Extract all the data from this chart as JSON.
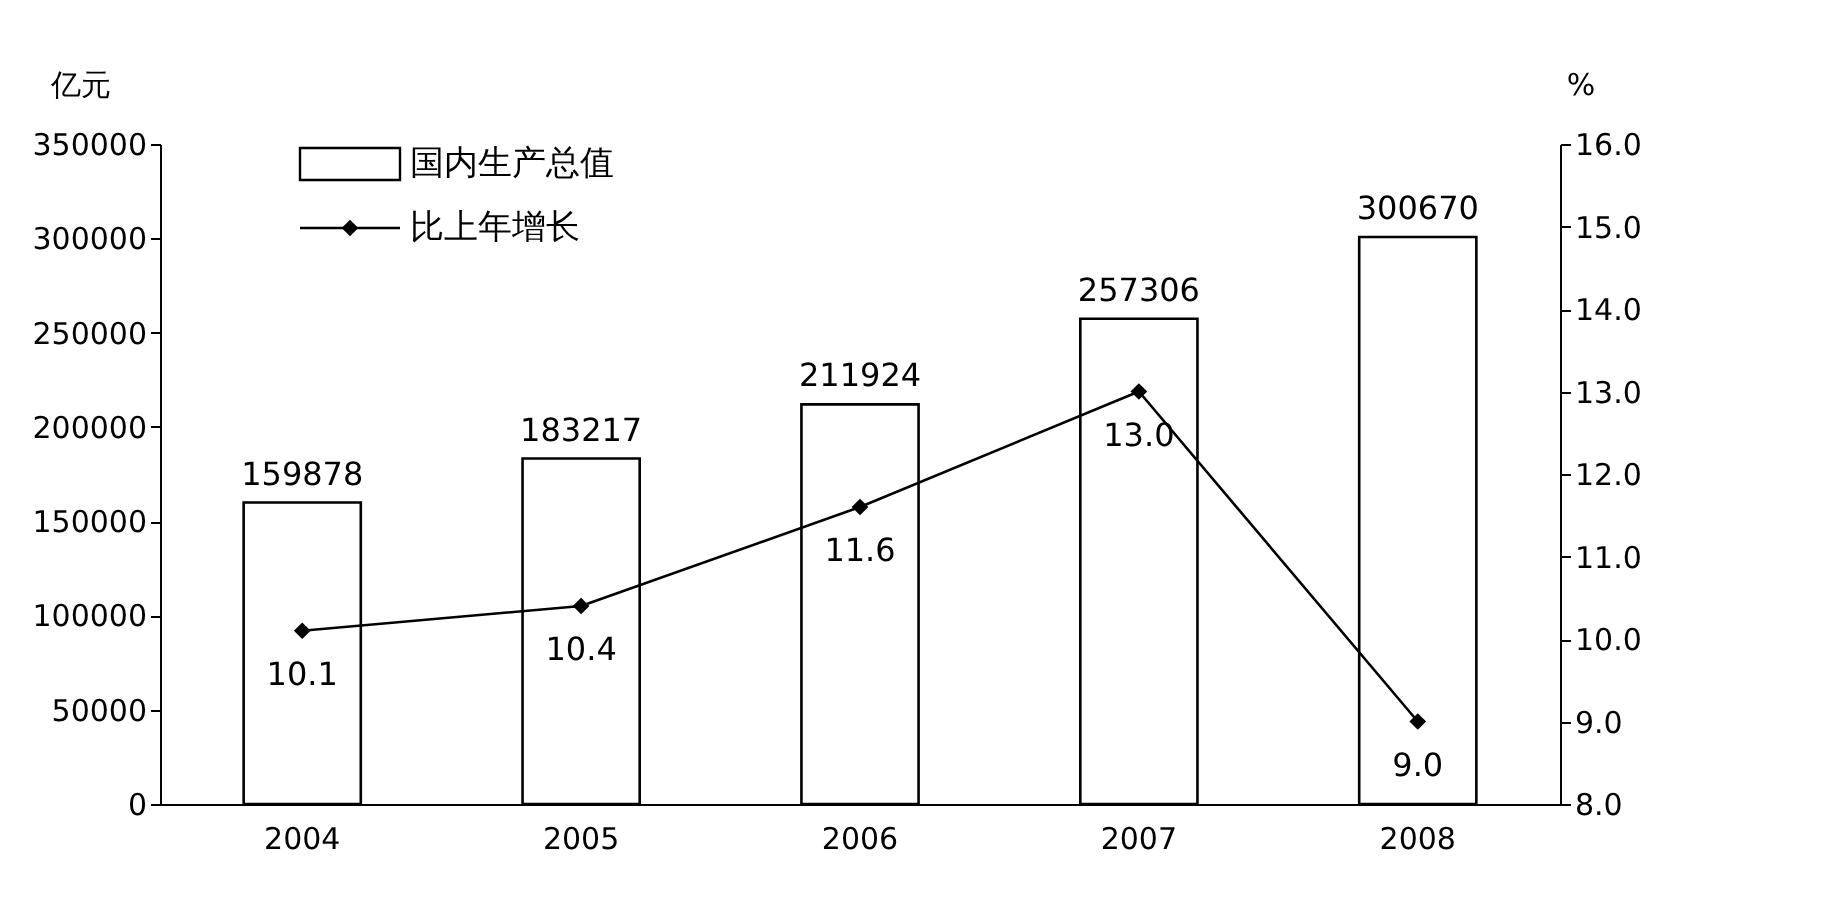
{
  "chart_data": {
    "type": "bar",
    "categories": [
      "2004",
      "2005",
      "2006",
      "2007",
      "2008"
    ],
    "series": [
      {
        "name": "国内生产总值",
        "color": "#ffffff",
        "values": [
          159878,
          183217,
          211924,
          257306,
          300670
        ]
      },
      {
        "name": "比上年增长",
        "type": "line",
        "axis": "y2",
        "color": "#000000",
        "values": [
          10.1,
          10.4,
          11.6,
          13.0,
          9.0
        ],
        "value_labels": [
          "10.1",
          "10.4",
          "11.6",
          "13.0",
          "9.0"
        ]
      }
    ],
    "ylabel": "亿元",
    "y2label": "%",
    "ylim": [
      0,
      350000
    ],
    "yticks": [
      0,
      50000,
      100000,
      150000,
      200000,
      250000,
      300000,
      350000
    ],
    "y2lim": [
      8,
      16
    ],
    "y2ticks": [
      {
        "value": 8,
        "label": "8.0"
      },
      {
        "value": 9,
        "label": "9.0"
      },
      {
        "value": 10,
        "label": "10.0"
      },
      {
        "value": 11,
        "label": "11.0"
      },
      {
        "value": 12,
        "label": "12.0"
      },
      {
        "value": 13,
        "label": "13.0"
      },
      {
        "value": 14,
        "label": "14.0"
      },
      {
        "value": 15,
        "label": "15.0"
      },
      {
        "value": 16,
        "label": "16.0"
      }
    ],
    "data_labels": true,
    "legend": "top left",
    "grid": false,
    "marker": "diamond"
  }
}
